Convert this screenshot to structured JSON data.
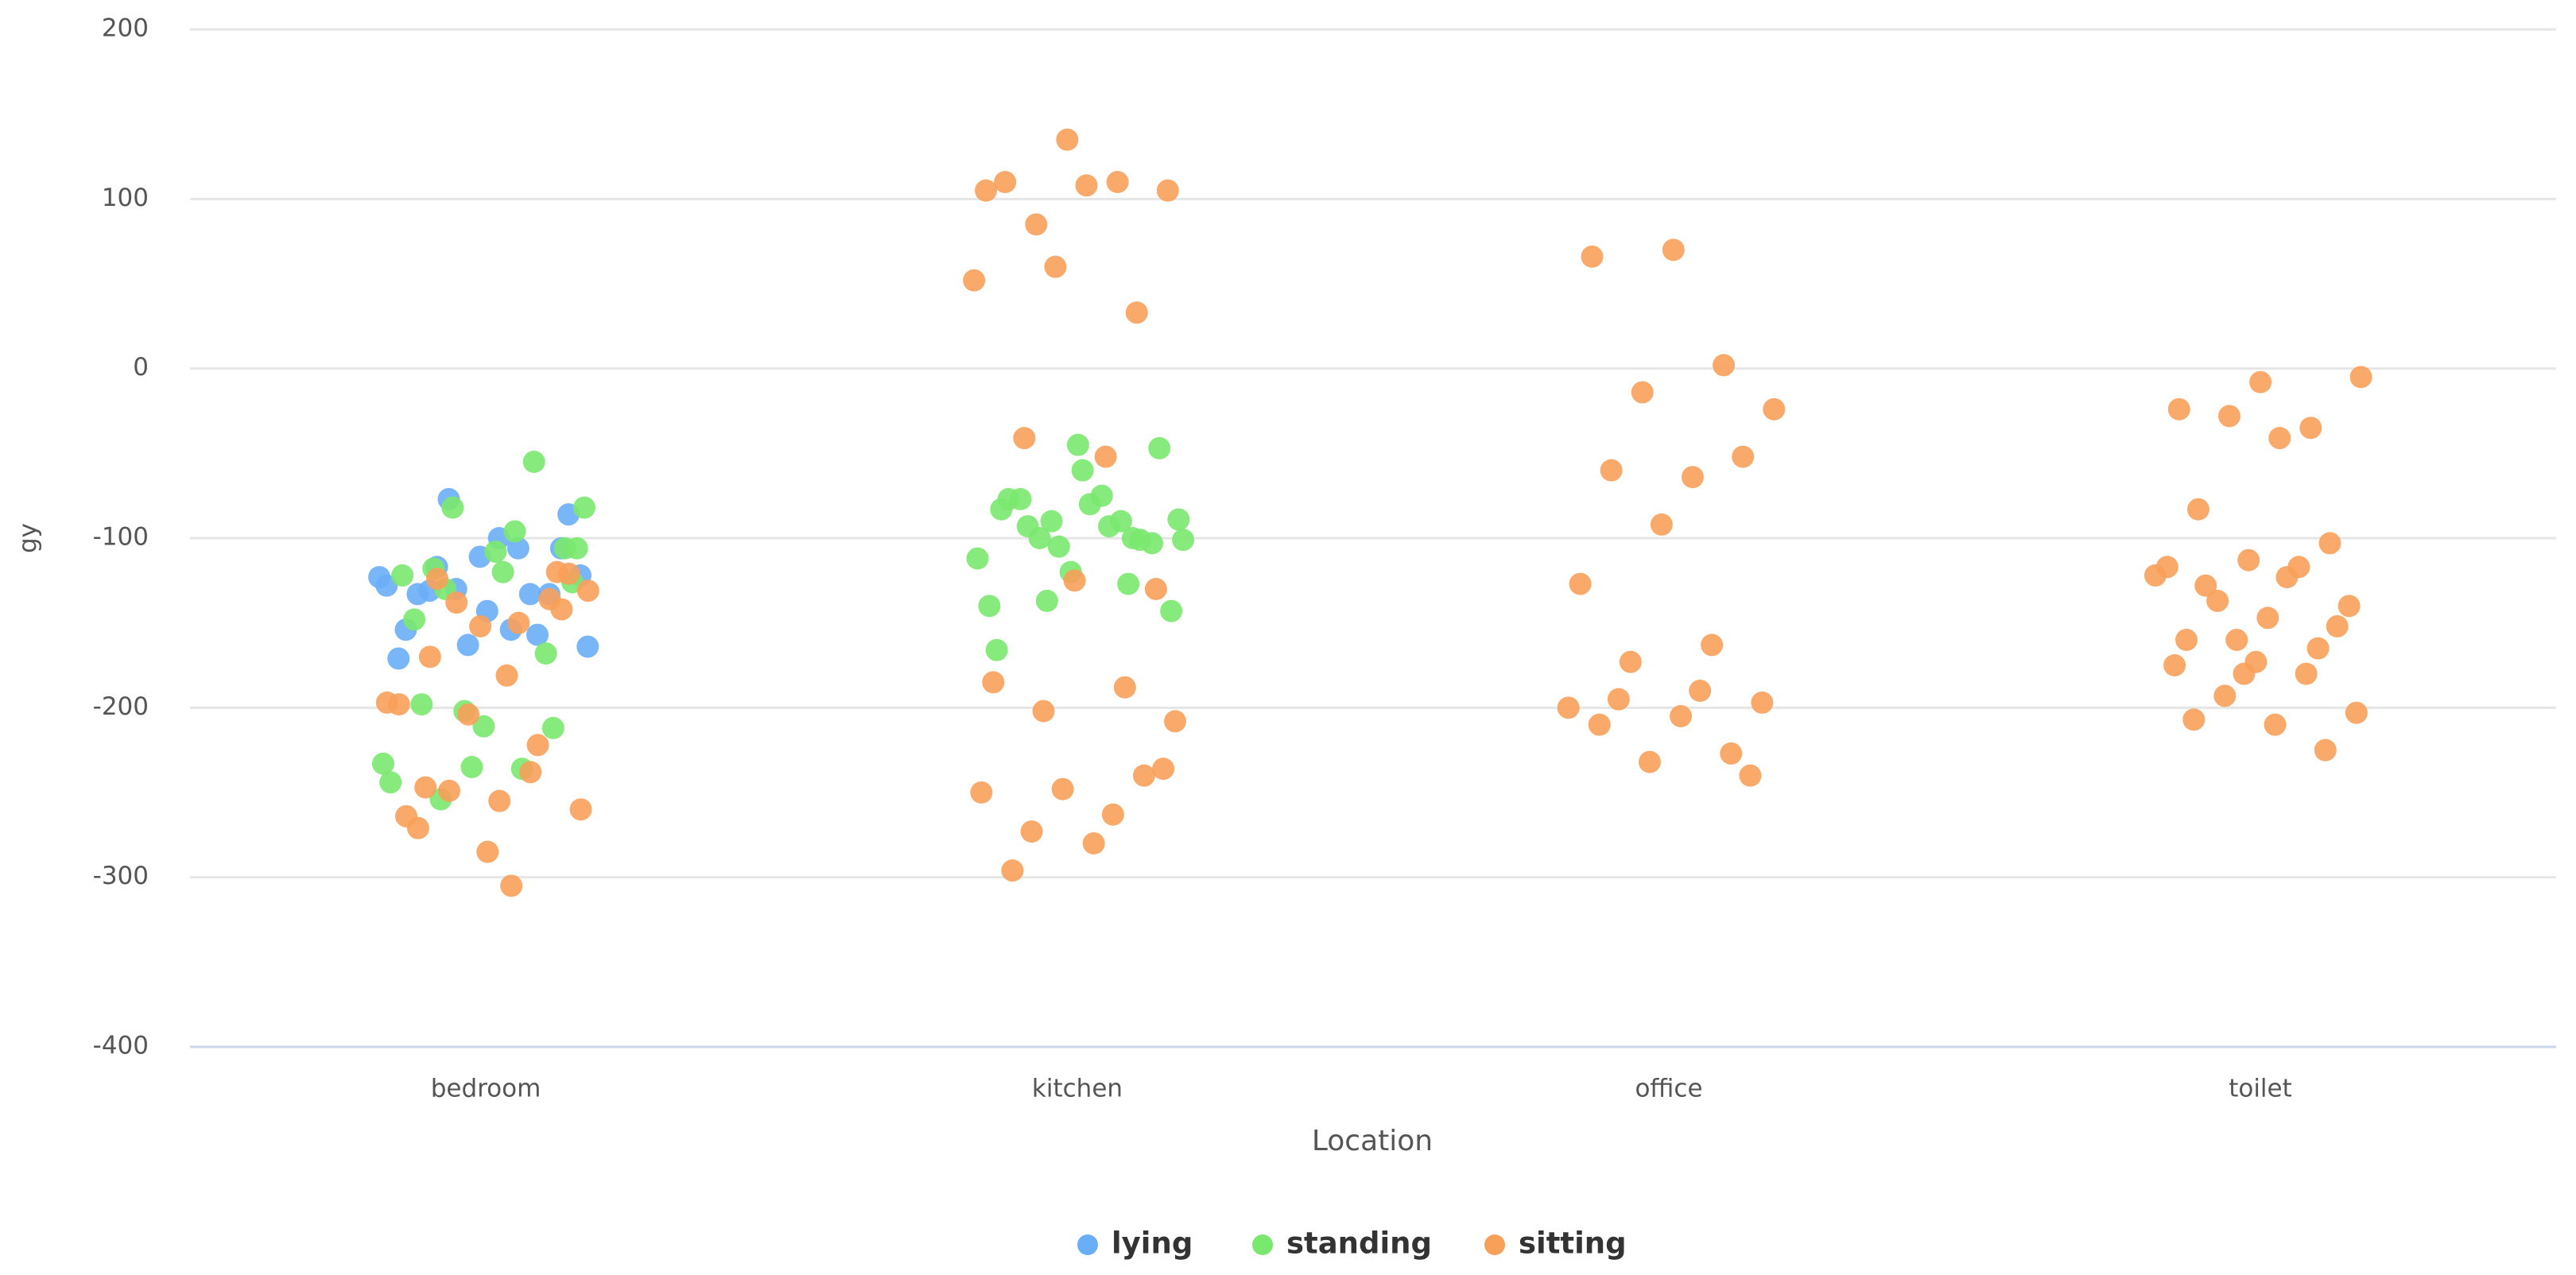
{
  "chart_data": {
    "type": "scatter",
    "x_label": "Location",
    "y_label": "gy",
    "categories": [
      "bedroom",
      "kitchen",
      "office",
      "toilet"
    ],
    "ylim": [
      -400,
      200
    ],
    "yticks": [
      -400,
      -300,
      -200,
      -100,
      0,
      100,
      200
    ],
    "grid": true,
    "legend": "bottom",
    "series": [
      {
        "name": "lying",
        "color": "#6aaef7",
        "x": [
          "bedroom",
          "bedroom",
          "bedroom",
          "bedroom",
          "bedroom",
          "bedroom",
          "bedroom",
          "bedroom",
          "bedroom",
          "bedroom",
          "bedroom",
          "bedroom",
          "bedroom",
          "bedroom",
          "bedroom",
          "bedroom",
          "bedroom",
          "bedroom",
          "bedroom",
          "bedroom",
          "bedroom",
          "bedroom"
        ],
        "values": [
          -123,
          -154,
          -131,
          -106,
          -111,
          -171,
          -133,
          -77,
          -122,
          -100,
          -133,
          -133,
          -163,
          -128,
          -106,
          -117,
          -86,
          -143,
          -154,
          -157,
          -130,
          -164
        ]
      },
      {
        "name": "standing",
        "color": "#7ae86e",
        "x": [
          "bedroom",
          "bedroom",
          "bedroom",
          "bedroom",
          "bedroom",
          "bedroom",
          "bedroom",
          "bedroom",
          "bedroom",
          "bedroom",
          "bedroom",
          "bedroom",
          "bedroom",
          "bedroom",
          "bedroom",
          "bedroom",
          "bedroom",
          "bedroom",
          "bedroom",
          "bedroom",
          "bedroom",
          "bedroom",
          "bedroom",
          "kitchen",
          "kitchen",
          "kitchen",
          "kitchen",
          "kitchen",
          "kitchen",
          "kitchen",
          "kitchen",
          "kitchen",
          "kitchen",
          "kitchen",
          "kitchen",
          "kitchen",
          "kitchen",
          "kitchen",
          "kitchen",
          "kitchen",
          "kitchen",
          "kitchen",
          "kitchen",
          "kitchen",
          "kitchen",
          "kitchen",
          "kitchen",
          "kitchen",
          "kitchen"
        ],
        "values": [
          -130,
          -106,
          -108,
          -148,
          -168,
          -202,
          -233,
          -96,
          -118,
          -106,
          -211,
          -122,
          -55,
          -82,
          -82,
          -120,
          -198,
          -212,
          -235,
          -244,
          -236,
          -254,
          -126,
          -60,
          -83,
          -100,
          -90,
          -101,
          -75,
          -77,
          -103,
          -120,
          -140,
          -90,
          -100,
          -143,
          -80,
          -77,
          -101,
          -105,
          -112,
          -93,
          -93,
          -47,
          -45,
          -166,
          -127,
          -137,
          -89
        ]
      },
      {
        "name": "sitting",
        "color": "#f8a05a",
        "x": [
          "bedroom",
          "bedroom",
          "bedroom",
          "bedroom",
          "bedroom",
          "bedroom",
          "bedroom",
          "bedroom",
          "bedroom",
          "bedroom",
          "bedroom",
          "bedroom",
          "bedroom",
          "bedroom",
          "bedroom",
          "bedroom",
          "bedroom",
          "bedroom",
          "bedroom",
          "bedroom",
          "bedroom",
          "bedroom",
          "bedroom",
          "bedroom",
          "kitchen",
          "kitchen",
          "kitchen",
          "kitchen",
          "kitchen",
          "kitchen",
          "kitchen",
          "kitchen",
          "kitchen",
          "kitchen",
          "kitchen",
          "kitchen",
          "kitchen",
          "kitchen",
          "kitchen",
          "kitchen",
          "kitchen",
          "kitchen",
          "kitchen",
          "kitchen",
          "kitchen",
          "kitchen",
          "kitchen",
          "kitchen",
          "kitchen",
          "kitchen",
          "office",
          "office",
          "office",
          "office",
          "office",
          "office",
          "office",
          "office",
          "office",
          "office",
          "office",
          "office",
          "office",
          "office",
          "office",
          "office",
          "office",
          "office",
          "office",
          "office",
          "office",
          "toilet",
          "toilet",
          "toilet",
          "toilet",
          "toilet",
          "toilet",
          "toilet",
          "toilet",
          "toilet",
          "toilet",
          "toilet",
          "toilet",
          "toilet",
          "toilet",
          "toilet",
          "toilet",
          "toilet",
          "toilet",
          "toilet",
          "toilet",
          "toilet",
          "toilet",
          "toilet",
          "toilet",
          "toilet",
          "toilet",
          "toilet",
          "toilet",
          "toilet",
          "toilet"
        ],
        "values": [
          -305,
          -170,
          -142,
          -152,
          -198,
          -238,
          -249,
          -260,
          -255,
          -271,
          -136,
          -204,
          -197,
          -150,
          -124,
          -121,
          -285,
          -264,
          -222,
          -138,
          -131,
          -181,
          -247,
          -120,
          135,
          105,
          110,
          85,
          105,
          108,
          110,
          33,
          60,
          52,
          -52,
          -41,
          -130,
          -125,
          -185,
          -188,
          -202,
          -208,
          -280,
          -296,
          -240,
          -248,
          -250,
          -263,
          -273,
          -236,
          70,
          66,
          2,
          -14,
          -24,
          -64,
          -60,
          -52,
          -92,
          -127,
          -163,
          -173,
          -197,
          -205,
          -210,
          -227,
          -232,
          -200,
          -190,
          -195,
          -240,
          -8,
          -24,
          -35,
          -28,
          -5,
          -41,
          -83,
          -103,
          -113,
          -117,
          -117,
          -137,
          -140,
          -147,
          -160,
          -165,
          -160,
          -122,
          -123,
          -128,
          -152,
          -173,
          -175,
          -180,
          -193,
          -203,
          -210,
          -207,
          -225,
          -180
        ]
      }
    ]
  }
}
